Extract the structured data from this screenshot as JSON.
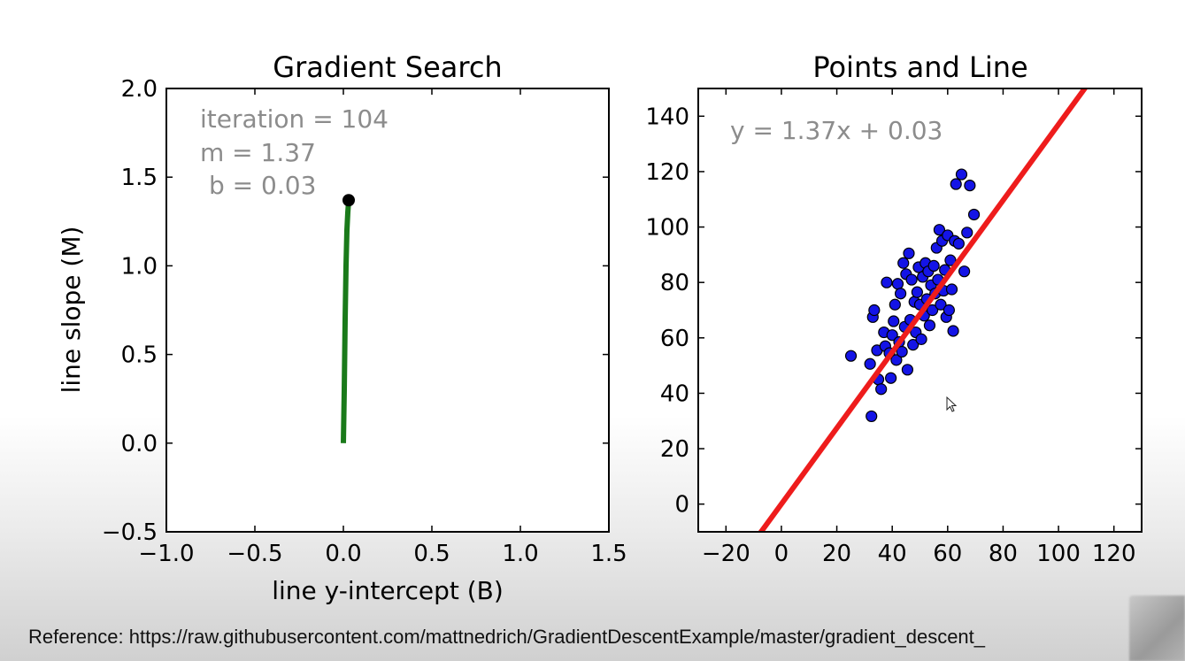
{
  "chart_data": [
    {
      "type": "line",
      "title": "Gradient Search",
      "xlabel": "line y-intercept (B)",
      "ylabel": "line slope (M)",
      "xlim": [
        -1.0,
        1.5
      ],
      "ylim": [
        -0.5,
        2.0
      ],
      "xticks": [
        "−1.0",
        "−0.5",
        "0.0",
        "0.5",
        "1.0",
        "1.5"
      ],
      "yticks": [
        "−0.5",
        "0.0",
        "0.5",
        "1.0",
        "1.5",
        "2.0"
      ],
      "annotations": [
        "iteration = 104",
        "m = 1.37",
        "b = 0.03"
      ],
      "series": [
        {
          "color": "#1a7a1a",
          "x": [
            0.0,
            0.005,
            0.01,
            0.015,
            0.02,
            0.025,
            0.03
          ],
          "y": [
            0.0,
            0.3,
            0.7,
            1.0,
            1.2,
            1.3,
            1.37
          ]
        }
      ],
      "current_point": {
        "x": 0.03,
        "y": 1.37,
        "color": "#000000"
      }
    },
    {
      "type": "scatter",
      "title": "Points and Line",
      "xlim": [
        -30,
        130
      ],
      "ylim": [
        -10,
        150
      ],
      "xticks": [
        "−20",
        "0",
        "20",
        "40",
        "60",
        "80",
        "100",
        "120"
      ],
      "yticks": [
        "0",
        "20",
        "40",
        "60",
        "80",
        "100",
        "120",
        "140"
      ],
      "annotations": [
        "y = 1.37x + 0.03"
      ],
      "line": {
        "slope": 1.37,
        "intercept": 0.03,
        "color": "#ee1c1c"
      },
      "points_color": "#1414e6",
      "points": [
        [
          25.1,
          53.5
        ],
        [
          32.5,
          31.7
        ],
        [
          32.0,
          50.6
        ],
        [
          33.0,
          67.5
        ],
        [
          33.5,
          70.0
        ],
        [
          34.5,
          55.5
        ],
        [
          35.0,
          45.0
        ],
        [
          36.0,
          41.5
        ],
        [
          37.0,
          62.0
        ],
        [
          37.5,
          57.0
        ],
        [
          38.0,
          80.0
        ],
        [
          39.0,
          54.5
        ],
        [
          39.5,
          45.5
        ],
        [
          40.0,
          61.0
        ],
        [
          40.5,
          66.0
        ],
        [
          41.0,
          72.0
        ],
        [
          41.5,
          52.0
        ],
        [
          42.0,
          79.5
        ],
        [
          42.5,
          58.5
        ],
        [
          43.0,
          76.0
        ],
        [
          43.5,
          55.0
        ],
        [
          44.0,
          87.0
        ],
        [
          44.5,
          64.0
        ],
        [
          45.0,
          83.0
        ],
        [
          45.5,
          48.5
        ],
        [
          46.0,
          90.5
        ],
        [
          46.5,
          66.5
        ],
        [
          47.0,
          81.0
        ],
        [
          47.5,
          57.5
        ],
        [
          48.0,
          73.0
        ],
        [
          48.5,
          62.0
        ],
        [
          49.0,
          76.5
        ],
        [
          49.5,
          85.5
        ],
        [
          50.0,
          72.0
        ],
        [
          50.5,
          59.5
        ],
        [
          51.0,
          82.0
        ],
        [
          51.5,
          68.0
        ],
        [
          52.0,
          87.0
        ],
        [
          52.5,
          74.0
        ],
        [
          53.0,
          84.0
        ],
        [
          53.5,
          64.5
        ],
        [
          54.0,
          79.0
        ],
        [
          54.5,
          70.0
        ],
        [
          55.0,
          86.0
        ],
        [
          55.5,
          76.0
        ],
        [
          56.0,
          92.5
        ],
        [
          56.5,
          81.0
        ],
        [
          57.0,
          99.0
        ],
        [
          57.5,
          72.0
        ],
        [
          58.0,
          95.0
        ],
        [
          58.5,
          77.0
        ],
        [
          59.0,
          84.5
        ],
        [
          59.5,
          67.5
        ],
        [
          60.0,
          97.0
        ],
        [
          60.5,
          70.0
        ],
        [
          61.0,
          88.0
        ],
        [
          61.5,
          77.5
        ],
        [
          62.0,
          62.5
        ],
        [
          62.5,
          95.0
        ],
        [
          63.0,
          115.5
        ],
        [
          64.0,
          94.0
        ],
        [
          65.0,
          119.0
        ],
        [
          66.0,
          84.0
        ],
        [
          67.0,
          98.0
        ],
        [
          68.0,
          115.0
        ],
        [
          69.5,
          104.5
        ]
      ]
    }
  ],
  "reference": "Reference: https://raw.githubusercontent.com/mattnedrich/GradientDescentExample/master/gradient_descent_"
}
